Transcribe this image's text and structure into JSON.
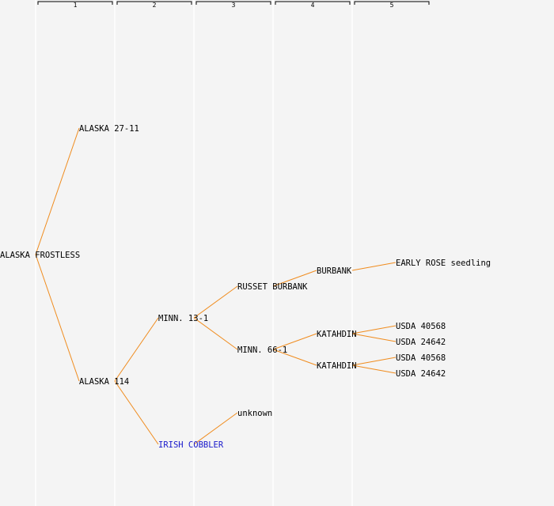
{
  "generations": [
    "1",
    "2",
    "3",
    "4",
    "5"
  ],
  "nodes": [
    {
      "id": "alaska-frostless",
      "label": "ALASKA FROSTLESS"
    },
    {
      "id": "alaska-27-11",
      "label": "ALASKA 27-11"
    },
    {
      "id": "alaska-114",
      "label": "ALASKA 114"
    },
    {
      "id": "minn-13-1",
      "label": "MINN. 13-1"
    },
    {
      "id": "irish-cobbler",
      "label": "IRISH COBBLER",
      "color": "#1a1acc"
    },
    {
      "id": "russet-burbank",
      "label": "RUSSET BURBANK"
    },
    {
      "id": "minn-66-1",
      "label": "MINN. 66-1"
    },
    {
      "id": "unknown",
      "label": "unknown"
    },
    {
      "id": "burbank",
      "label": "BURBANK"
    },
    {
      "id": "katahdin-a",
      "label": "KATAHDIN"
    },
    {
      "id": "katahdin-b",
      "label": "KATAHDIN"
    },
    {
      "id": "early-rose-seedling",
      "label": "EARLY ROSE seedling"
    },
    {
      "id": "usda-40568-a",
      "label": "USDA 40568"
    },
    {
      "id": "usda-24642-a",
      "label": "USDA 24642"
    },
    {
      "id": "usda-40568-b",
      "label": "USDA 40568"
    },
    {
      "id": "usda-24642-b",
      "label": "USDA 24642"
    }
  ],
  "edges": [
    [
      "alaska-frostless",
      "alaska-27-11"
    ],
    [
      "alaska-frostless",
      "alaska-114"
    ],
    [
      "alaska-114",
      "minn-13-1"
    ],
    [
      "alaska-114",
      "irish-cobbler"
    ],
    [
      "minn-13-1",
      "russet-burbank"
    ],
    [
      "minn-13-1",
      "minn-66-1"
    ],
    [
      "irish-cobbler",
      "unknown"
    ],
    [
      "russet-burbank",
      "burbank"
    ],
    [
      "burbank",
      "early-rose-seedling"
    ],
    [
      "minn-66-1",
      "katahdin-a"
    ],
    [
      "minn-66-1",
      "katahdin-b"
    ],
    [
      "katahdin-a",
      "usda-40568-a"
    ],
    [
      "katahdin-a",
      "usda-24642-a"
    ],
    [
      "katahdin-b",
      "usda-40568-b"
    ],
    [
      "katahdin-b",
      "usda-24642-b"
    ]
  ]
}
